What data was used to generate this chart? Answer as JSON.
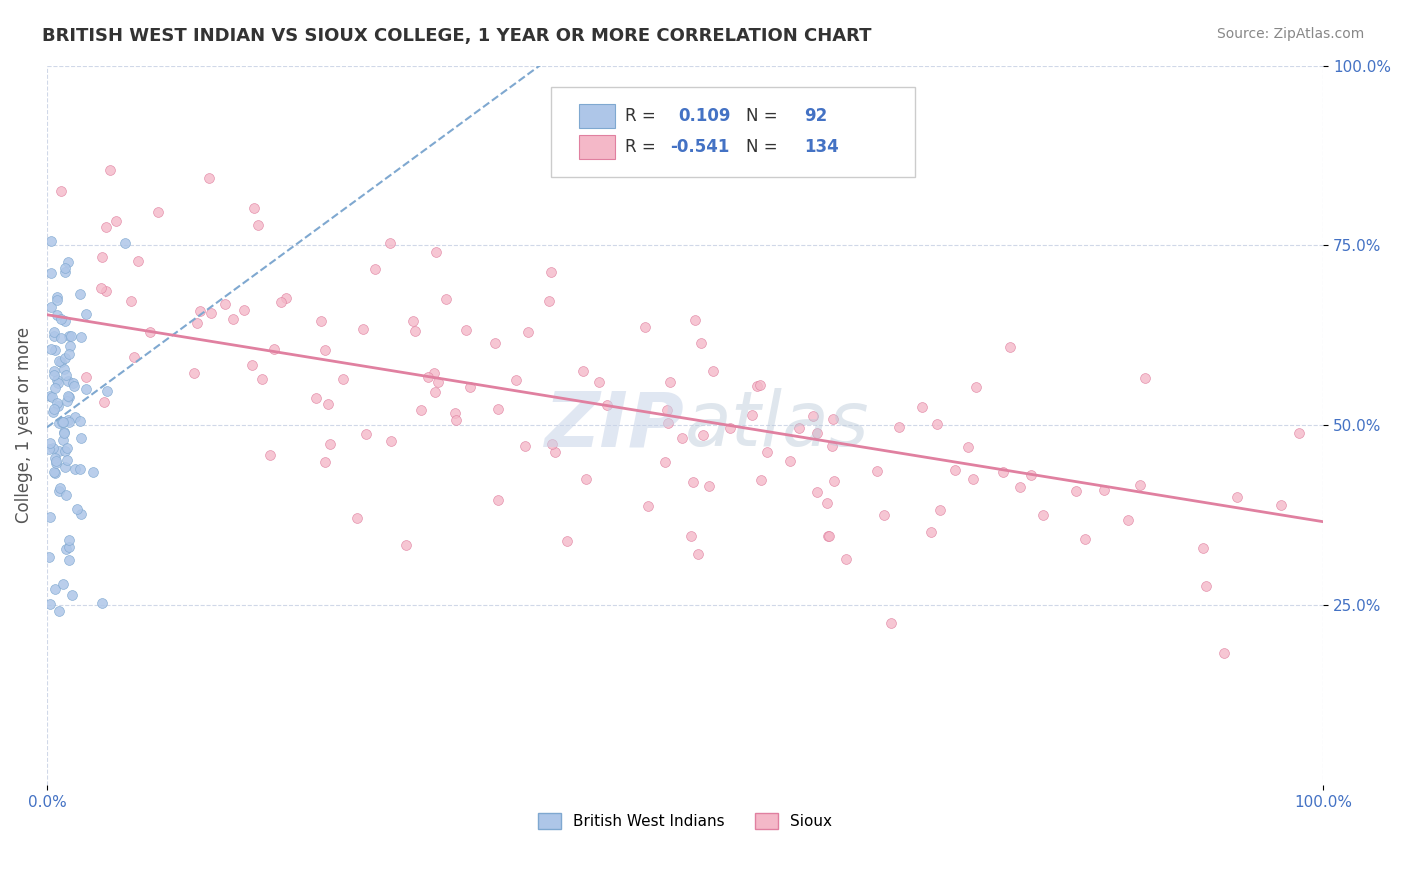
{
  "title": "BRITISH WEST INDIAN VS SIOUX COLLEGE, 1 YEAR OR MORE CORRELATION CHART",
  "source_text": "Source: ZipAtlas.com",
  "ylabel": "College, 1 year or more",
  "xlim": [
    0.0,
    1.0
  ],
  "ylim": [
    0.0,
    1.0
  ],
  "blue_R": 0.109,
  "blue_N": 92,
  "pink_R": -0.541,
  "pink_N": 134,
  "blue_color": "#aec6e8",
  "blue_edge": "#7fa8d0",
  "pink_color": "#f4b8c8",
  "pink_edge": "#e080a0",
  "blue_line_color": "#7fa8d0",
  "pink_line_color": "#e080a0",
  "grid_color": "#d0d8e8",
  "bg_color": "#ffffff",
  "title_fontsize": 13,
  "axis_label_color": "#555555",
  "tick_label_color": "#4472c4",
  "source_color": "#888888",
  "legend_text_color": "#333333",
  "legend_value_color": "#4472c4",
  "watermark_zip_color": "#c8d4e8",
  "watermark_atlas_color": "#b8c8d8"
}
